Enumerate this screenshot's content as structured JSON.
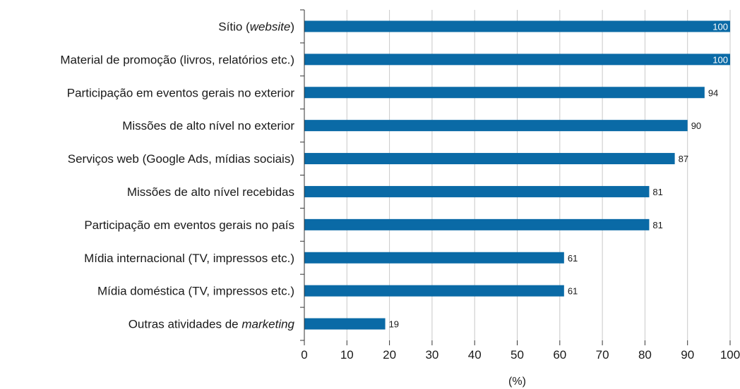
{
  "chart_data": {
    "type": "bar",
    "orientation": "horizontal",
    "categories": [
      [
        "Sítio (",
        {
          "i": "website"
        },
        ")"
      ],
      [
        "Material de promoção (livros, relatórios etc.)"
      ],
      [
        "Participação em eventos gerais no exterior"
      ],
      [
        "Missões de alto nível no exterior"
      ],
      [
        "Serviços web (Google Ads, mídias sociais)"
      ],
      [
        "Missões de alto nível recebidas"
      ],
      [
        "Participação em eventos gerais no país"
      ],
      [
        "Mídia internacional (TV, impressos etc.)"
      ],
      [
        "Mídia doméstica (TV, impressos etc.)"
      ],
      [
        "Outras atividades de ",
        {
          "i": "marketing"
        }
      ]
    ],
    "values": [
      100,
      100,
      94,
      90,
      87,
      81,
      81,
      61,
      61,
      19
    ],
    "xlabel": "(%)",
    "xlim": [
      0,
      100
    ],
    "xticks": [
      0,
      10,
      20,
      30,
      40,
      50,
      60,
      70,
      80,
      90,
      100
    ],
    "bar_color": "#0a6aa6",
    "grid": "vertical",
    "legend": "none"
  }
}
